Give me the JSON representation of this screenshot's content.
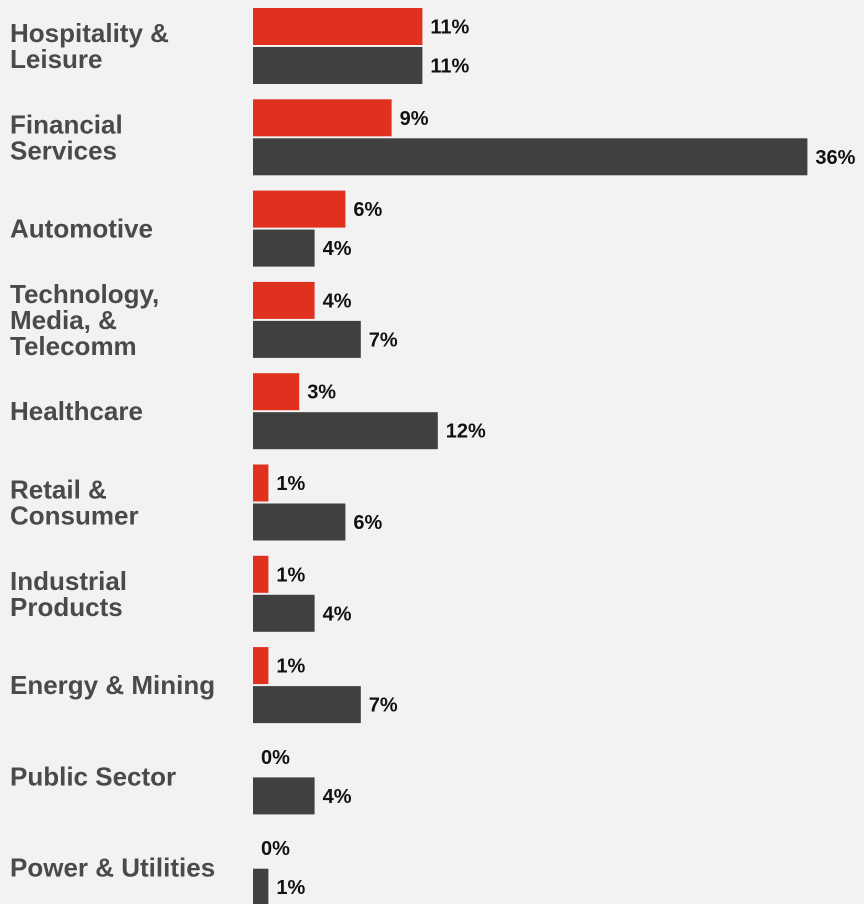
{
  "chart_data": {
    "type": "bar",
    "orientation": "horizontal",
    "categories": [
      "Hospitality & Leisure",
      "Financial Services",
      "Automotive",
      "Technology, Media, & Telecomm",
      "Healthcare",
      "Retail & Consumer",
      "Industrial Products",
      "Energy & Mining",
      "Public Sector",
      "Power & Utilities"
    ],
    "category_lines": [
      [
        "Hospitality &",
        "Leisure"
      ],
      [
        "Financial",
        "Services"
      ],
      [
        "Automotive"
      ],
      [
        "Technology,",
        "Media, &",
        "Telecomm"
      ],
      [
        "Healthcare"
      ],
      [
        "Retail &",
        "Consumer"
      ],
      [
        "Industrial",
        "Products"
      ],
      [
        "Energy & Mining"
      ],
      [
        "Public Sector"
      ],
      [
        "Power & Utilities"
      ]
    ],
    "series": [
      {
        "color": "#e0301e",
        "values": [
          11,
          9,
          6,
          4,
          3,
          1,
          1,
          1,
          0,
          0
        ]
      },
      {
        "color": "#404040",
        "values": [
          11,
          36,
          4,
          7,
          12,
          6,
          4,
          7,
          4,
          1
        ]
      }
    ],
    "value_suffix": "%",
    "xlim": [
      0,
      36
    ],
    "grid": false,
    "legend": "none"
  }
}
